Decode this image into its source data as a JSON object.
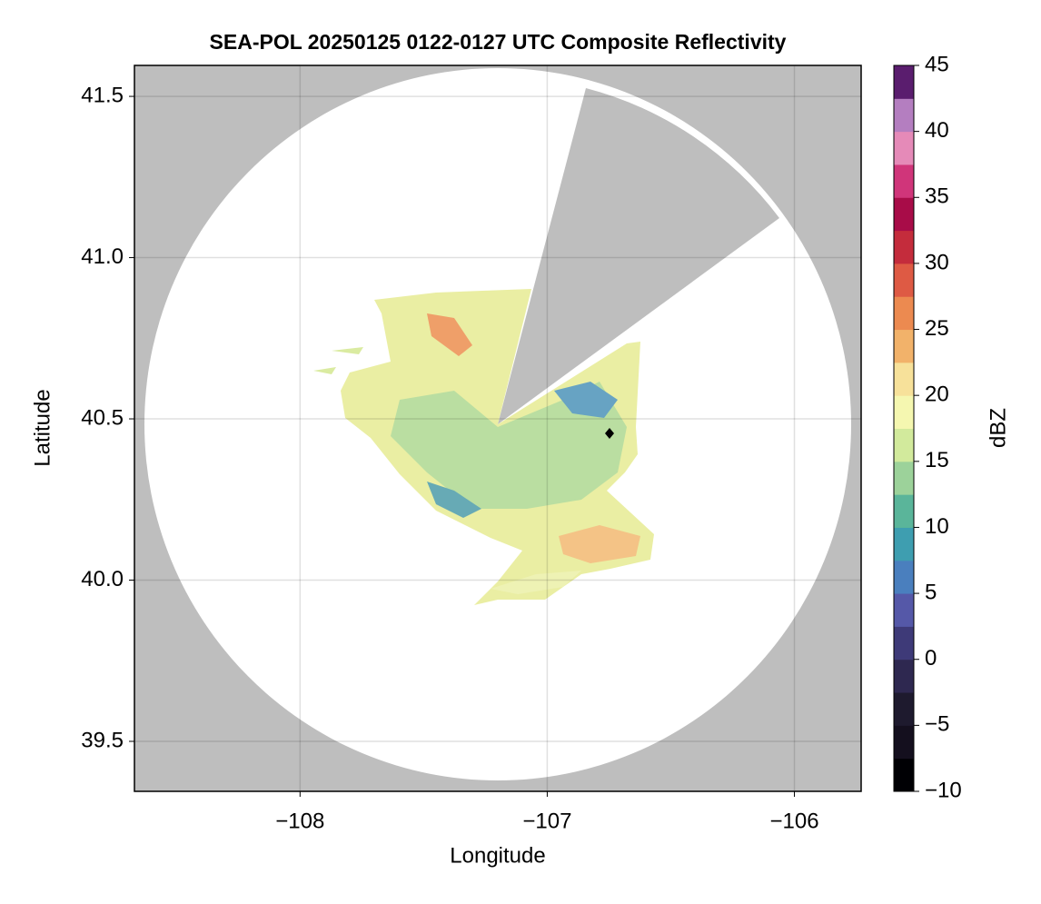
{
  "chart_data": {
    "type": "map",
    "title": "SEA-POL 20250125 0122-0127 UTC Composite Reflectivity",
    "x_label": "Longitude",
    "y_label": "Latitude",
    "xlim": [
      -108.67,
      -105.73
    ],
    "ylim": [
      39.345,
      41.596
    ],
    "xticks": [
      {
        "value": -108,
        "label": "−108"
      },
      {
        "value": -107,
        "label": "−107"
      },
      {
        "value": -106,
        "label": "−106"
      }
    ],
    "yticks": [
      39.5,
      {
        "value": 40,
        "label": "40.0"
      },
      40.5,
      {
        "value": 41,
        "label": "41.0"
      },
      41.5
    ],
    "grid": true,
    "colorbar": {
      "label": "dBZ",
      "clim": [
        -10,
        45
      ],
      "ticks": [
        {
          "value": -10,
          "label": "−10"
        },
        {
          "value": -5,
          "label": "−5"
        },
        0,
        5,
        10,
        15,
        20,
        25,
        30,
        35,
        40,
        45
      ],
      "colors": [
        "#000004",
        "#140f1e",
        "#1e1a2e",
        "#2e2850",
        "#3e3a78",
        "#5558a8",
        "#4a7fbe",
        "#3e9eb0",
        "#5ab59a",
        "#9cd29a",
        "#d2ea9c",
        "#f5f7b0",
        "#f7e19a",
        "#f2b26a",
        "#ec8a50",
        "#de5a44",
        "#c42c3c",
        "#a80c48",
        "#d0357a",
        "#e58ab8",
        "#b47ec0",
        "#5a1d6e"
      ]
    }
  }
}
